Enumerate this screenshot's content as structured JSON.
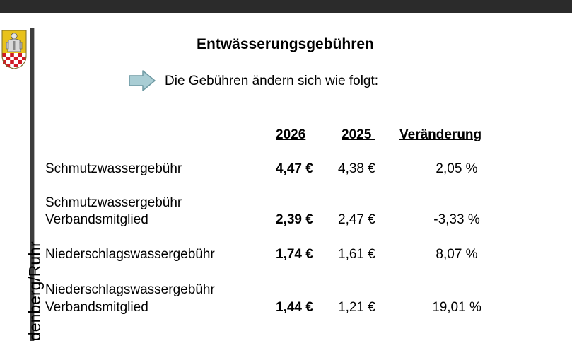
{
  "side_text": "denberg/Ruhr",
  "title": "Entwässerungsgebühren",
  "intro": "Die Gebühren ändern sich wie folgt:",
  "columns": {
    "y2026": "2026",
    "y2025": "2025 ",
    "change": "Veränderung"
  },
  "rows": [
    {
      "line1": "Schmutzwassergebühr",
      "line2": "",
      "v2026": "4,47 €",
      "v2025": "4,38 €",
      "change": "2,05 %"
    },
    {
      "line1": "Schmutzwassergebühr",
      "line2": "Verbandsmitglied",
      "v2026": "2,39 €",
      "v2025": "2,47 €",
      "change": "-3,33 %"
    },
    {
      "line1": "Niederschlagswassergebühr",
      "line2": "",
      "v2026": "1,74 €",
      "v2025": "1,61 €",
      "change": "8,07 %"
    },
    {
      "line1": "Niederschlagswassergebühr",
      "line2": "Verbandsmitglied",
      "v2026": "1,44 €",
      "v2025": "1,21 €",
      "change": "19,01 %"
    }
  ],
  "colors": {
    "top_bar": "#2b2b2b",
    "arrow_fill": "#a9cdd4",
    "arrow_stroke": "#6f9aa3",
    "crest_gold": "#e8c21c",
    "crest_red": "#d01a24"
  }
}
